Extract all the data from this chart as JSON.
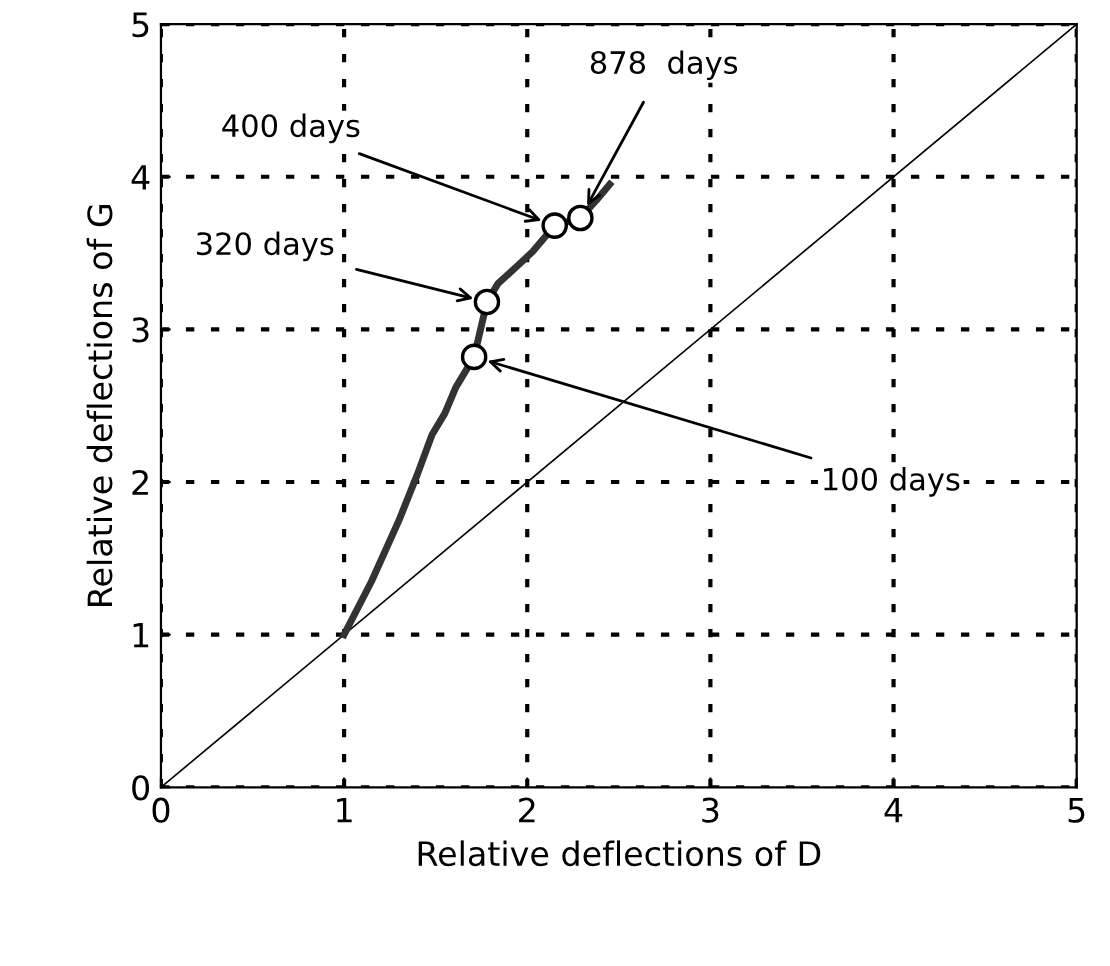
{
  "chart_data": {
    "type": "line",
    "xlabel": "Relative deflections of D",
    "ylabel": "Relative deflections of G",
    "xlim": [
      0,
      5
    ],
    "ylim": [
      0,
      5
    ],
    "xticks": [
      0,
      1,
      2,
      3,
      4,
      5
    ],
    "yticks": [
      0,
      1,
      2,
      3,
      4,
      5
    ],
    "grid": true,
    "series": [
      {
        "color": "#000000",
        "x": [
          0,
          5
        ],
        "values": [
          0,
          5
        ],
        "line_style": "solid",
        "marker": "none"
      },
      {
        "color": "#333333",
        "x": [
          1,
          1.15,
          1.3,
          1.4,
          1.48,
          1.55,
          1.61,
          1.71,
          1.78,
          1.84,
          1.95,
          2.03,
          2.15,
          2.29,
          2.38,
          2.45
        ],
        "values": [
          1,
          1.35,
          1.75,
          2.05,
          2.31,
          2.45,
          2.62,
          2.82,
          3.18,
          3.3,
          3.42,
          3.51,
          3.68,
          3.73,
          3.85,
          3.95
        ],
        "line_style": "solid",
        "marker": "none"
      },
      {
        "type": "scatter",
        "color": "#000000",
        "x": [
          1.71,
          1.78,
          2.15,
          2.29
        ],
        "values": [
          2.82,
          3.18,
          3.68,
          3.73
        ],
        "marker": "circle"
      }
    ],
    "annotations": [
      {
        "text": "400 days",
        "x": 2.15,
        "y": 3.68
      },
      {
        "text": "878  days",
        "x": 2.29,
        "y": 3.73
      },
      {
        "text": "320 days",
        "x": 1.78,
        "y": 3.18
      },
      {
        "text": "100 days",
        "x": 1.71,
        "y": 2.82
      }
    ]
  }
}
